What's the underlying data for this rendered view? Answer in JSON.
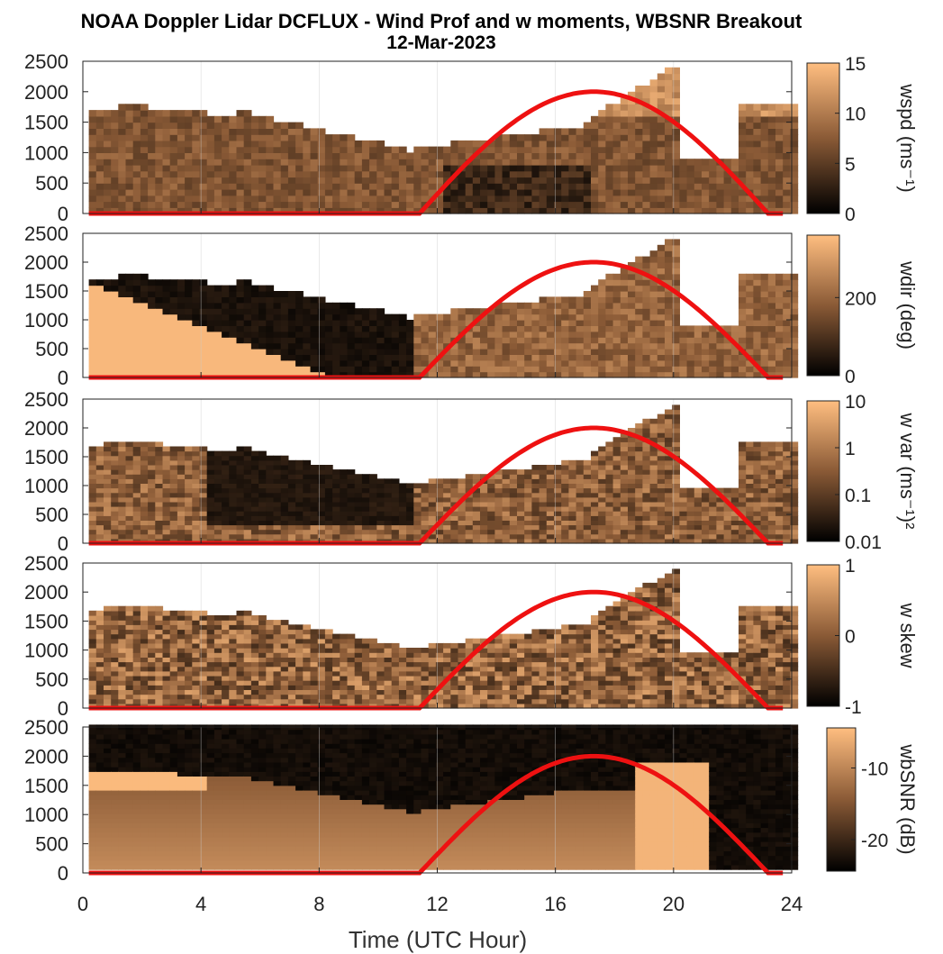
{
  "figure": {
    "title": "NOAA Doppler Lidar DCFLUX - Wind Prof and w moments, WBSNR Breakout",
    "date": "12-Mar-2023",
    "xlabel": "Time (UTC Hour)"
  },
  "colors": {
    "sun_curve": "#ee1111",
    "cmap_dark": "#000000",
    "cmap_mid": "#8a5a36",
    "cmap_light": "#ffbe80"
  },
  "chart_data": [
    {
      "type": "heatmap",
      "variable": "wspd",
      "clabel": "wspd (ms⁻¹)",
      "cticks": [
        "15",
        "10",
        "5",
        "0"
      ],
      "clim": [
        0,
        15
      ],
      "x": [
        0,
        24
      ],
      "xticks": [
        0,
        4,
        8,
        12,
        16,
        20,
        24
      ],
      "ylim": [
        0,
        2500
      ],
      "yticks": [
        0,
        500,
        1000,
        1500,
        2000,
        2500
      ],
      "sun_elevation_curve": {
        "rise_hour": 11.4,
        "peak_hour": 17.3,
        "set_hour": 23.2,
        "peak_value": 2000
      }
    },
    {
      "type": "heatmap",
      "variable": "wdir",
      "clabel": "wdir (deg)",
      "cticks": [
        "200",
        "0"
      ],
      "clim": [
        0,
        360
      ],
      "x": [
        0,
        24
      ],
      "xticks": [
        0,
        4,
        8,
        12,
        16,
        20,
        24
      ],
      "ylim": [
        0,
        2500
      ],
      "yticks": [
        0,
        500,
        1000,
        1500,
        2000,
        2500
      ],
      "sun_elevation_curve": {
        "rise_hour": 11.4,
        "peak_hour": 17.3,
        "set_hour": 23.2,
        "peak_value": 2000
      }
    },
    {
      "type": "heatmap",
      "variable": "w var",
      "clabel": "w var (ms⁻¹)²",
      "cticks": [
        "10",
        "1",
        "0.1",
        "0.01"
      ],
      "clim": [
        0.01,
        10
      ],
      "cscale": "log",
      "x": [
        0,
        24
      ],
      "xticks": [
        0,
        4,
        8,
        12,
        16,
        20,
        24
      ],
      "ylim": [
        0,
        2500
      ],
      "yticks": [
        0,
        500,
        1000,
        1500,
        2000,
        2500
      ],
      "sun_elevation_curve": {
        "rise_hour": 11.4,
        "peak_hour": 17.3,
        "set_hour": 23.2,
        "peak_value": 2000
      }
    },
    {
      "type": "heatmap",
      "variable": "w skew",
      "clabel": "w skew",
      "cticks": [
        "1",
        "0",
        "-1"
      ],
      "clim": [
        -1,
        1
      ],
      "x": [
        0,
        24
      ],
      "xticks": [
        0,
        4,
        8,
        12,
        16,
        20,
        24
      ],
      "ylim": [
        0,
        2500
      ],
      "yticks": [
        0,
        500,
        1000,
        1500,
        2000,
        2500
      ],
      "sun_elevation_curve": {
        "rise_hour": 11.4,
        "peak_hour": 17.3,
        "set_hour": 23.2,
        "peak_value": 2000
      }
    },
    {
      "type": "heatmap",
      "variable": "wbSNR",
      "clabel": "wbSNR (dB)",
      "cticks": [
        "-10",
        "-20"
      ],
      "clim": [
        -25,
        -5
      ],
      "x": [
        0,
        24
      ],
      "xticks": [
        0,
        4,
        8,
        12,
        16,
        20,
        24
      ],
      "ylim": [
        0,
        2500
      ],
      "yticks": [
        0,
        500,
        1000,
        1500,
        2000,
        2500
      ],
      "sun_elevation_curve": {
        "rise_hour": 11.4,
        "peak_hour": 17.3,
        "set_hour": 23.2,
        "peak_value": 2000
      }
    }
  ]
}
